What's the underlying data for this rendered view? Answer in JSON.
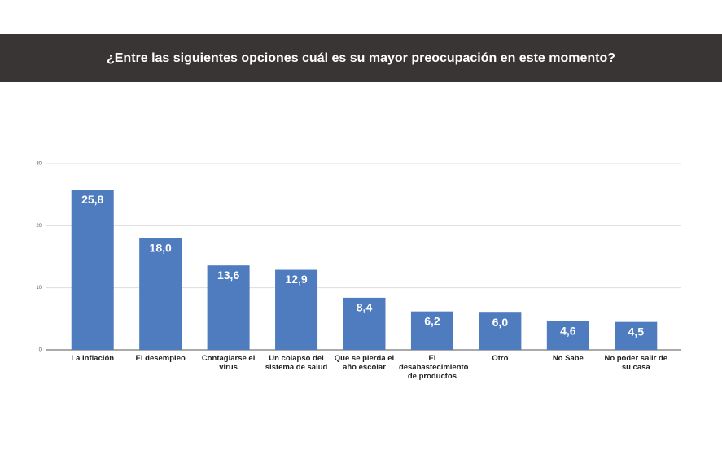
{
  "chart_data": {
    "type": "bar",
    "title": "¿Entre las siguientes opciones cuál es su mayor preocupación en este momento?",
    "categories": [
      "La Inflación",
      "El desempleo",
      "Contagiarse el virus",
      "Un colapso del sistema de salud",
      "Que se pierda el año escolar",
      "El desabastecimiento de productos",
      "Otro",
      "No Sabe",
      "No poder salir de su casa"
    ],
    "values": [
      25.8,
      18.0,
      13.6,
      12.9,
      8.4,
      6.2,
      6.0,
      4.6,
      4.5
    ],
    "value_labels": [
      "25,8",
      "18,0",
      "13,6",
      "12,9",
      "8,4",
      "6,2",
      "6,0",
      "4,6",
      "4,5"
    ],
    "color": "#4f7cbf",
    "ylim": [
      0,
      30
    ],
    "yticks": [
      0,
      10,
      20,
      30
    ],
    "grid": true
  }
}
